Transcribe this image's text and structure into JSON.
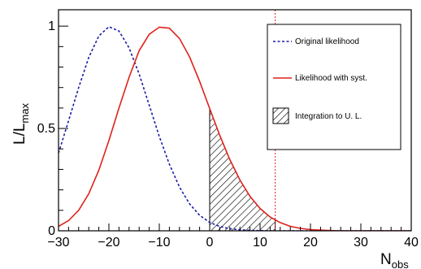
{
  "chart_data": {
    "type": "line",
    "xlabel": {
      "main": "N",
      "sub": "obs"
    },
    "ylabel": {
      "main": "L/L",
      "sub": "max"
    },
    "xlim": [
      -30,
      40
    ],
    "ylim": [
      0,
      1.08
    ],
    "x_ticks": [
      -30,
      -20,
      -10,
      0,
      10,
      20,
      30,
      40
    ],
    "y_ticks": [
      0,
      0.5,
      1
    ],
    "y_tick_labels": [
      "0",
      "0.5",
      "1"
    ],
    "grid": false,
    "legend_position": "top-right",
    "series": [
      {
        "name": "Original likelihood",
        "color": "#1a1aa6",
        "style": "dashed",
        "x": [
          -30,
          -28,
          -26,
          -24,
          -22,
          -20,
          -18,
          -16,
          -14,
          -12,
          -10,
          -8,
          -6,
          -4,
          -2,
          0,
          2,
          4,
          6,
          8,
          10,
          12,
          14,
          16,
          18,
          20,
          22,
          24,
          26,
          28,
          30,
          32,
          34,
          36,
          38,
          40
        ],
        "values": [
          0.38,
          0.538,
          0.7,
          0.847,
          0.952,
          0.997,
          0.976,
          0.894,
          0.766,
          0.614,
          0.461,
          0.325,
          0.214,
          0.132,
          0.076,
          0.041,
          0.021,
          0.01,
          0.005,
          0.002,
          0.001,
          0.0,
          0.0,
          0.0,
          0.0,
          0.0,
          0.0,
          0.0,
          0.0,
          0.0,
          0.0,
          0.0,
          0.0,
          0.0,
          0.0,
          0.0
        ]
      },
      {
        "name": "Likelihood with syst.",
        "color": "#e0201b",
        "style": "solid",
        "x": [
          -30,
          -28,
          -26,
          -24,
          -22,
          -20,
          -18,
          -16,
          -14,
          -12,
          -10,
          -8,
          -6,
          -4,
          -2,
          0,
          2,
          4,
          6,
          8,
          10,
          12,
          14,
          16,
          18,
          20,
          22,
          24,
          26,
          28,
          30,
          32,
          34,
          36,
          38,
          40
        ],
        "values": [
          0.022,
          0.05,
          0.1,
          0.181,
          0.296,
          0.441,
          0.6,
          0.75,
          0.88,
          0.96,
          0.995,
          0.99,
          0.94,
          0.85,
          0.73,
          0.597,
          0.466,
          0.348,
          0.248,
          0.168,
          0.109,
          0.067,
          0.04,
          0.022,
          0.012,
          0.006,
          0.003,
          0.001,
          0.0,
          0.0,
          0.0,
          0.0,
          0.0,
          0.0,
          0.0,
          0.0
        ]
      }
    ],
    "hatched_region": {
      "name": "Integration to U. L.",
      "x_from": 0,
      "x_to": 13,
      "series_index": 1
    },
    "reference_line": {
      "x": 13,
      "color": "#e0201b",
      "style": "dotted"
    },
    "legend": [
      {
        "label": "Original likelihood",
        "series_index": 0
      },
      {
        "label": "Likelihood with syst.",
        "series_index": 1
      },
      {
        "label": "Integration to U. L.",
        "swatch": "hatch"
      }
    ]
  }
}
